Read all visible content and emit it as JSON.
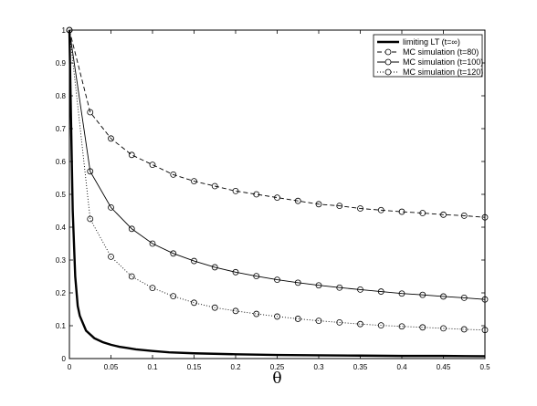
{
  "chart_data": {
    "type": "line",
    "title": "",
    "xlabel": "θ",
    "ylabel": "",
    "xlim": [
      0,
      0.5
    ],
    "ylim": [
      0,
      1
    ],
    "xticks": [
      "0",
      "0.05",
      "0.1",
      "0.15",
      "0.2",
      "0.25",
      "0.3",
      "0.35",
      "0.4",
      "0.45",
      "0.5"
    ],
    "yticks": [
      "0",
      "0.1",
      "0.2",
      "0.3",
      "0.4",
      "0.5",
      "0.6",
      "0.7",
      "0.8",
      "0.9",
      "1"
    ],
    "grid": false,
    "legend_position": "top-right",
    "series": [
      {
        "name": "limiting LT (t=∞)",
        "style": "solid-thick",
        "marker": "none",
        "color": "#000000",
        "x": [
          0,
          0.002,
          0.004,
          0.007,
          0.01,
          0.0125,
          0.02,
          0.03,
          0.04,
          0.05,
          0.06,
          0.07,
          0.08,
          0.1,
          0.12,
          0.15,
          0.2,
          0.25,
          0.3,
          0.35,
          0.4,
          0.45,
          0.5
        ],
        "y": [
          1.0,
          0.72,
          0.45,
          0.25,
          0.16,
          0.13,
          0.085,
          0.062,
          0.05,
          0.042,
          0.036,
          0.032,
          0.028,
          0.023,
          0.019,
          0.016,
          0.013,
          0.011,
          0.01,
          0.009,
          0.008,
          0.008,
          0.007
        ]
      },
      {
        "name": "MC simulation (t=80)",
        "style": "dashed",
        "marker": "circle",
        "color": "#000000",
        "x": [
          0,
          0.025,
          0.05,
          0.075,
          0.1,
          0.125,
          0.15,
          0.175,
          0.2,
          0.225,
          0.25,
          0.275,
          0.3,
          0.325,
          0.35,
          0.375,
          0.4,
          0.425,
          0.45,
          0.475,
          0.5
        ],
        "y": [
          1.0,
          0.75,
          0.67,
          0.62,
          0.59,
          0.56,
          0.54,
          0.525,
          0.51,
          0.5,
          0.49,
          0.48,
          0.47,
          0.465,
          0.457,
          0.452,
          0.447,
          0.443,
          0.438,
          0.435,
          0.43
        ]
      },
      {
        "name": "MC simulation (t=100)",
        "style": "solid",
        "marker": "circle",
        "color": "#000000",
        "x": [
          0,
          0.025,
          0.05,
          0.075,
          0.1,
          0.125,
          0.15,
          0.175,
          0.2,
          0.225,
          0.25,
          0.275,
          0.3,
          0.325,
          0.35,
          0.375,
          0.4,
          0.425,
          0.45,
          0.475,
          0.5
        ],
        "y": [
          1.0,
          0.57,
          0.46,
          0.395,
          0.35,
          0.32,
          0.297,
          0.278,
          0.263,
          0.251,
          0.24,
          0.231,
          0.223,
          0.216,
          0.21,
          0.204,
          0.198,
          0.194,
          0.189,
          0.185,
          0.18
        ]
      },
      {
        "name": "MC simulation (t=120)",
        "style": "dotted",
        "marker": "circle",
        "color": "#000000",
        "x": [
          0,
          0.025,
          0.05,
          0.075,
          0.1,
          0.125,
          0.15,
          0.175,
          0.2,
          0.225,
          0.25,
          0.275,
          0.3,
          0.325,
          0.35,
          0.375,
          0.4,
          0.425,
          0.45,
          0.475,
          0.5
        ],
        "y": [
          1.0,
          0.425,
          0.31,
          0.25,
          0.215,
          0.19,
          0.17,
          0.155,
          0.145,
          0.136,
          0.128,
          0.121,
          0.115,
          0.11,
          0.105,
          0.101,
          0.098,
          0.095,
          0.092,
          0.089,
          0.087
        ]
      }
    ]
  }
}
